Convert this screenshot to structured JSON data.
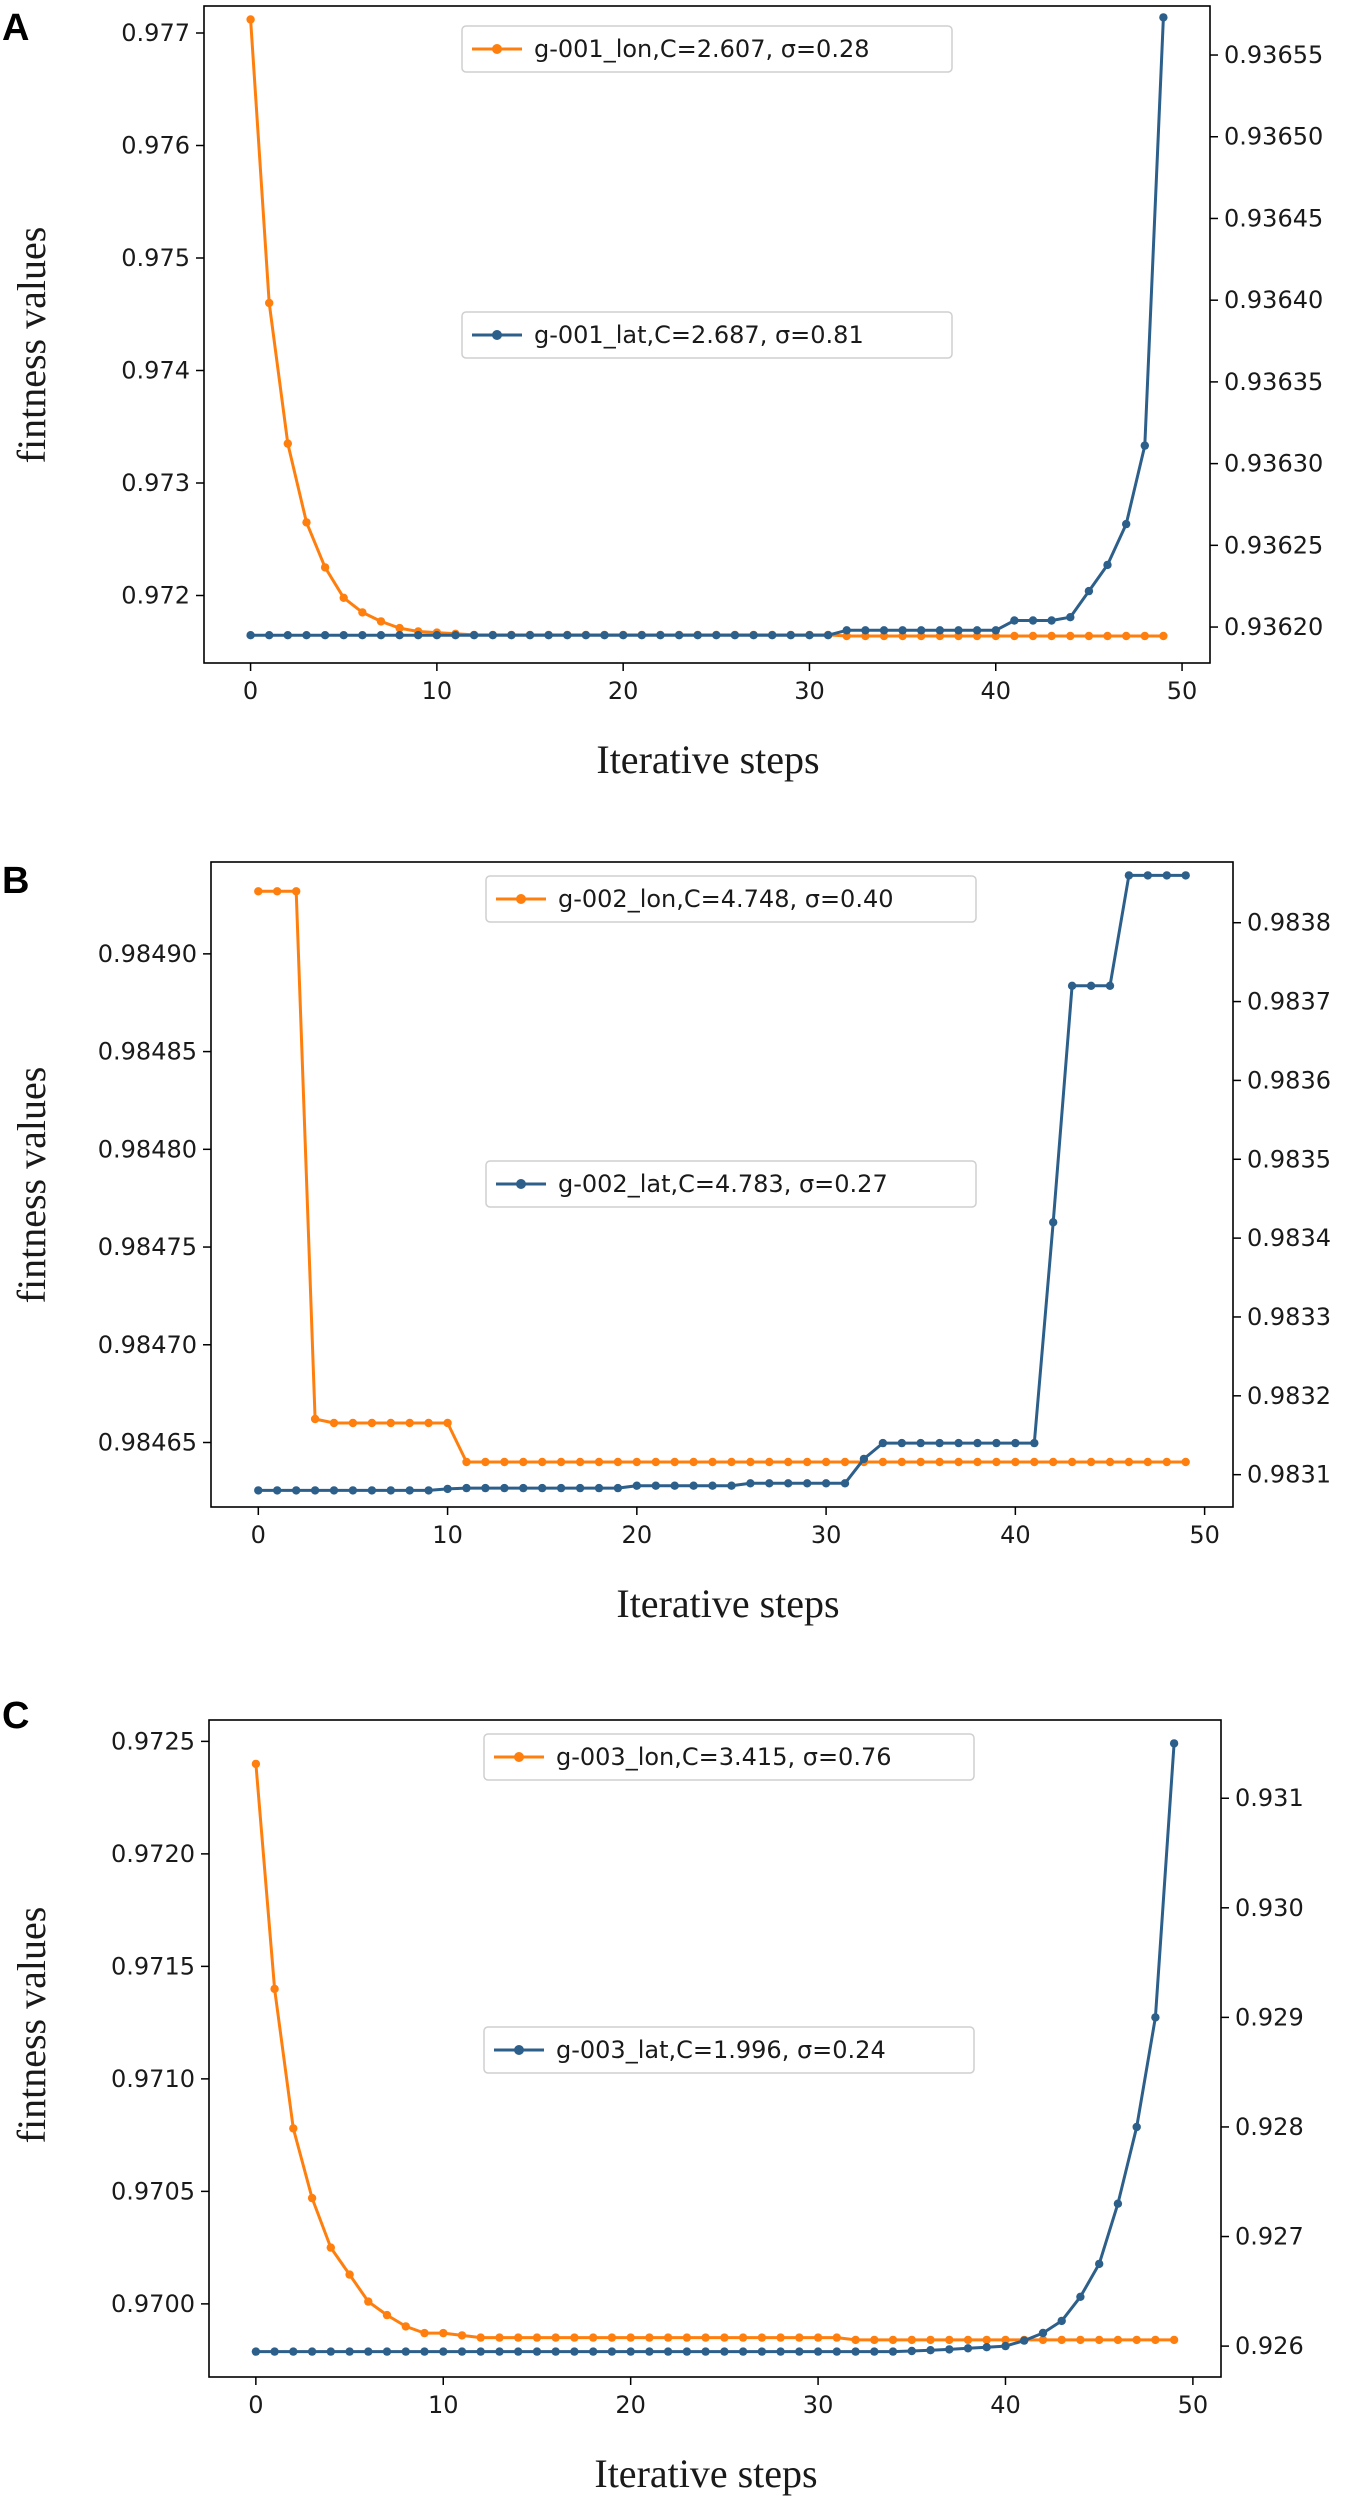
{
  "figure": {
    "panel_labels": [
      "A",
      "B",
      "C"
    ]
  },
  "chart_data": [
    {
      "panel": "A",
      "type": "line",
      "xlabel": "Iterative steps",
      "ylabel": "fintness values",
      "x_ticks": [
        "0",
        "10",
        "20",
        "30",
        "40",
        "50"
      ],
      "y_left_ticks": [
        "0.977",
        "0.976",
        "0.975",
        "0.974",
        "0.973",
        "0.972"
      ],
      "y_right_ticks": [
        "0.93655",
        "0.93650",
        "0.93645",
        "0.93640",
        "0.93635",
        "0.93630",
        "0.93625",
        "0.93620"
      ],
      "xlim": [
        -2.5,
        51.5
      ],
      "ylim_left": [
        0.9714,
        0.97724
      ],
      "ylim_right": [
        0.936178,
        0.93658
      ],
      "series": [
        {
          "name": "g-001_lon,C=2.607, σ=0.28",
          "axis": "left",
          "color": "#ff7f0e",
          "values": [
            0.97712,
            0.9746,
            0.97335,
            0.97265,
            0.97225,
            0.97198,
            0.97185,
            0.97177,
            0.97171,
            0.97168,
            0.97167,
            0.97166,
            0.97165,
            0.97165,
            0.97165,
            0.97165,
            0.97165,
            0.97165,
            0.97165,
            0.97165,
            0.97165,
            0.97165,
            0.97165,
            0.97165,
            0.97165,
            0.97165,
            0.97165,
            0.97165,
            0.97165,
            0.97165,
            0.97165,
            0.97165,
            0.97164,
            0.97164,
            0.97164,
            0.97164,
            0.97164,
            0.97164,
            0.97164,
            0.97164,
            0.97164,
            0.97164,
            0.97164,
            0.97164,
            0.97164,
            0.97164,
            0.97164,
            0.97164,
            0.97164,
            0.97164
          ]
        },
        {
          "name": "g-001_lat,C=2.687, σ=0.81",
          "axis": "right",
          "color": "#2d5f8b",
          "values": [
            0.936195,
            0.936195,
            0.936195,
            0.936195,
            0.936195,
            0.936195,
            0.936195,
            0.936195,
            0.936195,
            0.936195,
            0.936195,
            0.936195,
            0.936195,
            0.936195,
            0.936195,
            0.936195,
            0.936195,
            0.936195,
            0.936195,
            0.936195,
            0.936195,
            0.936195,
            0.936195,
            0.936195,
            0.936195,
            0.936195,
            0.936195,
            0.936195,
            0.936195,
            0.936195,
            0.936195,
            0.936195,
            0.936198,
            0.936198,
            0.936198,
            0.936198,
            0.936198,
            0.936198,
            0.936198,
            0.936198,
            0.936198,
            0.936204,
            0.936204,
            0.936204,
            0.936206,
            0.936222,
            0.936238,
            0.936263,
            0.936311,
            0.936573
          ]
        }
      ]
    },
    {
      "panel": "B",
      "type": "line",
      "xlabel": "Iterative steps",
      "ylabel": "fintness values",
      "x_ticks": [
        "0",
        "10",
        "20",
        "30",
        "40",
        "50"
      ],
      "y_left_ticks": [
        "0.98490",
        "0.98485",
        "0.98480",
        "0.98475",
        "0.98470",
        "0.98465"
      ],
      "y_right_ticks": [
        "0.9838",
        "0.9837",
        "0.9836",
        "0.9835",
        "0.9834",
        "0.9833",
        "0.9832",
        "0.9831"
      ],
      "xlim": [
        -2.5,
        51.5
      ],
      "ylim_left": [
        0.984617,
        0.984947
      ],
      "ylim_right": [
        0.983059,
        0.983877
      ],
      "series": [
        {
          "name": "g-002_lon,C=4.748, σ=0.40",
          "axis": "left",
          "color": "#ff7f0e",
          "values": [
            0.984932,
            0.984932,
            0.984932,
            0.984662,
            0.98466,
            0.98466,
            0.98466,
            0.98466,
            0.98466,
            0.98466,
            0.98466,
            0.98464,
            0.98464,
            0.98464,
            0.98464,
            0.98464,
            0.98464,
            0.98464,
            0.98464,
            0.98464,
            0.98464,
            0.98464,
            0.98464,
            0.98464,
            0.98464,
            0.98464,
            0.98464,
            0.98464,
            0.98464,
            0.98464,
            0.98464,
            0.98464,
            0.98464,
            0.98464,
            0.98464,
            0.98464,
            0.98464,
            0.98464,
            0.98464,
            0.98464,
            0.98464,
            0.98464,
            0.98464,
            0.98464,
            0.98464,
            0.98464,
            0.98464,
            0.98464,
            0.98464,
            0.98464
          ]
        },
        {
          "name": "g-002_lat,C=4.783, σ=0.27",
          "axis": "right",
          "color": "#2d5f8b",
          "values": [
            0.98308,
            0.98308,
            0.98308,
            0.98308,
            0.98308,
            0.98308,
            0.98308,
            0.98308,
            0.98308,
            0.98308,
            0.983082,
            0.983083,
            0.983083,
            0.983083,
            0.983083,
            0.983083,
            0.983083,
            0.983083,
            0.983083,
            0.983083,
            0.983086,
            0.983086,
            0.983086,
            0.983086,
            0.983086,
            0.983086,
            0.983089,
            0.983089,
            0.983089,
            0.983089,
            0.983089,
            0.983089,
            0.98312,
            0.98314,
            0.98314,
            0.98314,
            0.98314,
            0.98314,
            0.98314,
            0.98314,
            0.98314,
            0.98314,
            0.98342,
            0.98372,
            0.98372,
            0.98372,
            0.98386,
            0.98386,
            0.98386,
            0.98386
          ]
        }
      ]
    },
    {
      "panel": "C",
      "type": "line",
      "xlabel": "Iterative steps",
      "ylabel": "fintness values",
      "x_ticks": [
        "0",
        "10",
        "20",
        "30",
        "40",
        "50"
      ],
      "y_left_ticks": [
        "0.9725",
        "0.9720",
        "0.9715",
        "0.9710",
        "0.9705",
        "0.9700"
      ],
      "y_right_ticks": [
        "0.931",
        "0.930",
        "0.929",
        "0.928",
        "0.927",
        "0.926"
      ],
      "xlim": [
        -2.5,
        51.5
      ],
      "ylim_left": [
        0.969675,
        0.972595
      ],
      "ylim_right": [
        0.925718,
        0.931714
      ],
      "series": [
        {
          "name": "g-003_lon,C=3.415, σ=0.76",
          "axis": "left",
          "color": "#ff7f0e",
          "values": [
            0.9724,
            0.9714,
            0.97078,
            0.97047,
            0.97025,
            0.97013,
            0.97001,
            0.96995,
            0.9699,
            0.96987,
            0.96987,
            0.96986,
            0.96985,
            0.96985,
            0.96985,
            0.96985,
            0.96985,
            0.96985,
            0.96985,
            0.96985,
            0.96985,
            0.96985,
            0.96985,
            0.96985,
            0.96985,
            0.96985,
            0.96985,
            0.96985,
            0.96985,
            0.96985,
            0.96985,
            0.96985,
            0.96984,
            0.96984,
            0.96984,
            0.96984,
            0.96984,
            0.96984,
            0.96984,
            0.96984,
            0.96984,
            0.96984,
            0.96984,
            0.96984,
            0.96984,
            0.96984,
            0.96984,
            0.96984,
            0.96984,
            0.96984
          ]
        },
        {
          "name": "g-003_lat,C=1.996, σ=0.24",
          "axis": "right",
          "color": "#2d5f8b",
          "values": [
            0.92595,
            0.92595,
            0.92595,
            0.92595,
            0.92595,
            0.92595,
            0.92595,
            0.92595,
            0.92595,
            0.92595,
            0.92595,
            0.92595,
            0.92595,
            0.92595,
            0.92595,
            0.92595,
            0.92595,
            0.92595,
            0.92595,
            0.92595,
            0.92595,
            0.92595,
            0.92595,
            0.92595,
            0.92595,
            0.92595,
            0.92595,
            0.92595,
            0.92595,
            0.92595,
            0.92595,
            0.92595,
            0.92595,
            0.92595,
            0.92595,
            0.925955,
            0.925963,
            0.92597,
            0.92598,
            0.92599,
            0.926,
            0.92605,
            0.92612,
            0.92623,
            0.92645,
            0.92675,
            0.9273,
            0.928,
            0.929,
            0.9315
          ]
        }
      ]
    }
  ]
}
